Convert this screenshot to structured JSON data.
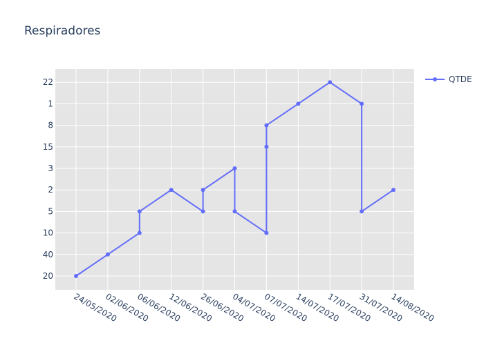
{
  "chart_data": {
    "type": "line",
    "title": "Respiradores",
    "xlabel": "",
    "ylabel": "",
    "categories_x": [
      "24/05/2020",
      "02/06/2020",
      "06/06/2020",
      "12/06/2020",
      "26/06/2020",
      "04/07/2020",
      "07/07/2020",
      "14/07/2020",
      "17/07/2020",
      "31/07/2020",
      "14/08/2020"
    ],
    "categories_y": [
      "20",
      "40",
      "10",
      "5",
      "2",
      "3",
      "15",
      "8",
      "1",
      "22"
    ],
    "series": [
      {
        "name": "QTDE",
        "color": "#636efa",
        "mode": "lines+markers",
        "x": [
          "24/05/2020",
          "02/06/2020",
          "06/06/2020",
          "06/06/2020",
          "12/06/2020",
          "26/06/2020",
          "26/06/2020",
          "04/07/2020",
          "04/07/2020",
          "07/07/2020",
          "07/07/2020",
          "07/07/2020",
          "14/07/2020",
          "17/07/2020",
          "31/07/2020",
          "31/07/2020",
          "14/08/2020"
        ],
        "y": [
          "20",
          "40",
          "10",
          "5",
          "2",
          "5",
          "2",
          "3",
          "5",
          "10",
          "15",
          "8",
          "1",
          "22",
          "1",
          "5",
          "2"
        ]
      }
    ],
    "grid": true,
    "legend_position": "top-right",
    "plot_background": "#e5e5e5",
    "grid_color": "#ffffff"
  }
}
